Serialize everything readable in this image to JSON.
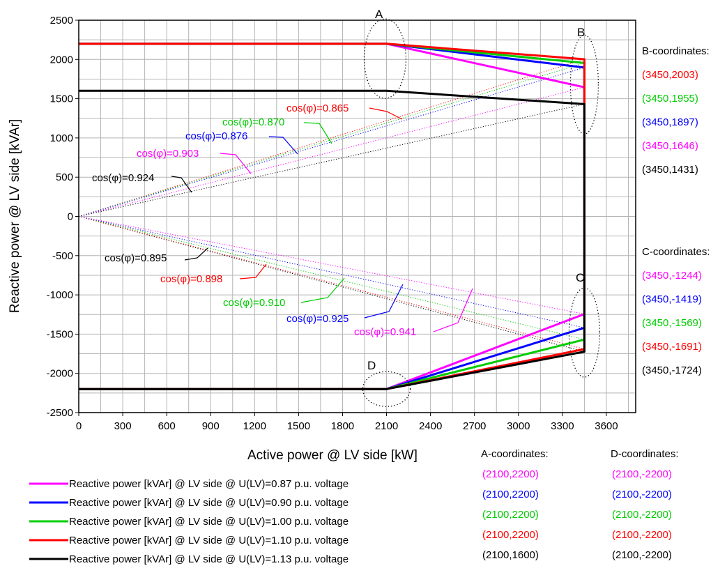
{
  "chart_data": {
    "type": "line",
    "xlabel": "Active power @ LV side [kW]",
    "ylabel": "Reactive power @ LV side [kVAr]",
    "xlim": [
      0,
      3800
    ],
    "ylim": [
      -2500,
      2500
    ],
    "xticks": [
      "0",
      "300",
      "600",
      "900",
      "1200",
      "1500",
      "1800",
      "2100",
      "2400",
      "2700",
      "3000",
      "3300",
      "3600"
    ],
    "yticks": [
      "2500",
      "2000",
      "1500",
      "1000",
      "500",
      "0",
      "-500",
      "-1000",
      "-1500",
      "-2000",
      "-2500"
    ],
    "grid": true,
    "series": [
      {
        "name": "Reactive power [kVAr] @ LV side @ U(LV)=0.87 p.u. voltage",
        "color": "#ff00ff",
        "points": [
          [
            0,
            2200
          ],
          [
            2100,
            2200
          ],
          [
            3450,
            1646
          ],
          [
            3450,
            -1244
          ],
          [
            2100,
            -2200
          ],
          [
            0,
            -2200
          ]
        ]
      },
      {
        "name": "Reactive power [kVAr] @ LV side @ U(LV)=0.90 p.u. voltage",
        "color": "#0000ff",
        "points": [
          [
            0,
            2200
          ],
          [
            2100,
            2200
          ],
          [
            3450,
            1897
          ],
          [
            3450,
            -1419
          ],
          [
            2100,
            -2200
          ],
          [
            0,
            -2200
          ]
        ]
      },
      {
        "name": "Reactive power [kVAr] @ LV side @ U(LV)=1.00 p.u. voltage",
        "color": "#00cc00",
        "points": [
          [
            0,
            2200
          ],
          [
            2100,
            2200
          ],
          [
            3450,
            1955
          ],
          [
            3450,
            -1569
          ],
          [
            2100,
            -2200
          ],
          [
            0,
            -2200
          ]
        ]
      },
      {
        "name": "Reactive power [kVAr] @ LV side @ U(LV)=1.10 p.u. voltage",
        "color": "#ff0000",
        "points": [
          [
            0,
            2200
          ],
          [
            2100,
            2200
          ],
          [
            3450,
            2003
          ],
          [
            3450,
            -1691
          ],
          [
            2100,
            -2200
          ],
          [
            0,
            -2200
          ]
        ]
      },
      {
        "name": "Reactive power [kVAr] @ LV side @ U(LV)=1.13 p.u. voltage",
        "color": "#000000",
        "points": [
          [
            0,
            1600
          ],
          [
            2100,
            1600
          ],
          [
            3450,
            1431
          ],
          [
            3450,
            -1724
          ],
          [
            2100,
            -2200
          ],
          [
            0,
            -2200
          ]
        ]
      }
    ],
    "pf_lines": [
      {
        "label": "cos(φ)=0.865",
        "color": "#ff0000",
        "end": [
          3450,
          2003
        ]
      },
      {
        "label": "cos(φ)=0.870",
        "color": "#00cc00",
        "end": [
          3450,
          1955
        ]
      },
      {
        "label": "cos(φ)=0.876",
        "color": "#0000ff",
        "end": [
          3450,
          1897
        ]
      },
      {
        "label": "cos(φ)=0.903",
        "color": "#ff00ff",
        "end": [
          3450,
          1646
        ]
      },
      {
        "label": "cos(φ)=0.924",
        "color": "#000000",
        "end": [
          3450,
          1431
        ]
      },
      {
        "label": "cos(φ)=0.895",
        "color": "#000000",
        "end": [
          3450,
          -1724
        ]
      },
      {
        "label": "cos(φ)=0.898",
        "color": "#ff0000",
        "end": [
          3450,
          -1691
        ]
      },
      {
        "label": "cos(φ)=0.910",
        "color": "#00cc00",
        "end": [
          3450,
          -1569
        ]
      },
      {
        "label": "cos(φ)=0.925",
        "color": "#0000ff",
        "end": [
          3450,
          -1419
        ]
      },
      {
        "label": "cos(φ)=0.941",
        "color": "#ff00ff",
        "end": [
          3450,
          -1244
        ]
      }
    ],
    "point_letters": [
      "A",
      "B",
      "C",
      "D"
    ],
    "coordinate_lists": [
      {
        "title": "B-coordinates:",
        "items": [
          {
            "text": "(3450,2003)",
            "color": "#ff0000"
          },
          {
            "text": "(3450,1955)",
            "color": "#00cc00"
          },
          {
            "text": "(3450,1897)",
            "color": "#0000ff"
          },
          {
            "text": "(3450,1646)",
            "color": "#ff00ff"
          },
          {
            "text": "(3450,1431)",
            "color": "#000000"
          }
        ]
      },
      {
        "title": "C-coordinates:",
        "items": [
          {
            "text": "(3450,-1244)",
            "color": "#ff00ff"
          },
          {
            "text": "(3450,-1419)",
            "color": "#0000ff"
          },
          {
            "text": "(3450,-1569)",
            "color": "#00cc00"
          },
          {
            "text": "(3450,-1691)",
            "color": "#ff0000"
          },
          {
            "text": "(3450,-1724)",
            "color": "#000000"
          }
        ]
      },
      {
        "title": "A-coordinates:",
        "items": [
          {
            "text": "(2100,2200)",
            "color": "#ff00ff"
          },
          {
            "text": "(2100,2200)",
            "color": "#0000ff"
          },
          {
            "text": "(2100,2200)",
            "color": "#00cc00"
          },
          {
            "text": "(2100,2200)",
            "color": "#ff0000"
          },
          {
            "text": "(2100,1600)",
            "color": "#000000"
          }
        ]
      },
      {
        "title": "D-coordinates:",
        "items": [
          {
            "text": "(2100,-2200)",
            "color": "#ff00ff"
          },
          {
            "text": "(2100,-2200)",
            "color": "#0000ff"
          },
          {
            "text": "(2100,-2200)",
            "color": "#00cc00"
          },
          {
            "text": "(2100,-2200)",
            "color": "#ff0000"
          },
          {
            "text": "(2100,-2200)",
            "color": "#000000"
          }
        ]
      }
    ]
  }
}
